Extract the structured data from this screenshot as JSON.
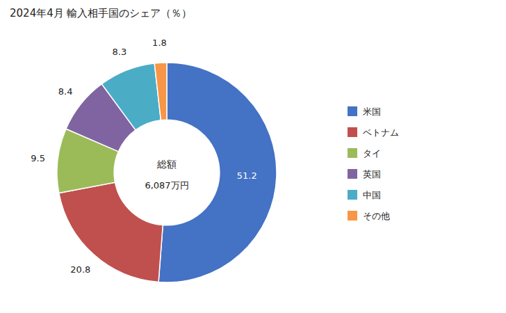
{
  "chart_data": {
    "type": "pie",
    "title": "2024年4月 輸入相手国のシェア（％）",
    "annotations": [
      "総額",
      "6,087万円"
    ],
    "categories": [
      "米国",
      "ベトナム",
      "タイ",
      "英国",
      "中国",
      "その他"
    ],
    "values": [
      51.2,
      20.8,
      9.5,
      8.4,
      8.3,
      1.8
    ],
    "colors": [
      "#4472C4",
      "#C0504D",
      "#9BBB59",
      "#8064A2",
      "#4BACC6",
      "#F79646"
    ],
    "data_labels": true,
    "legend": "right"
  }
}
